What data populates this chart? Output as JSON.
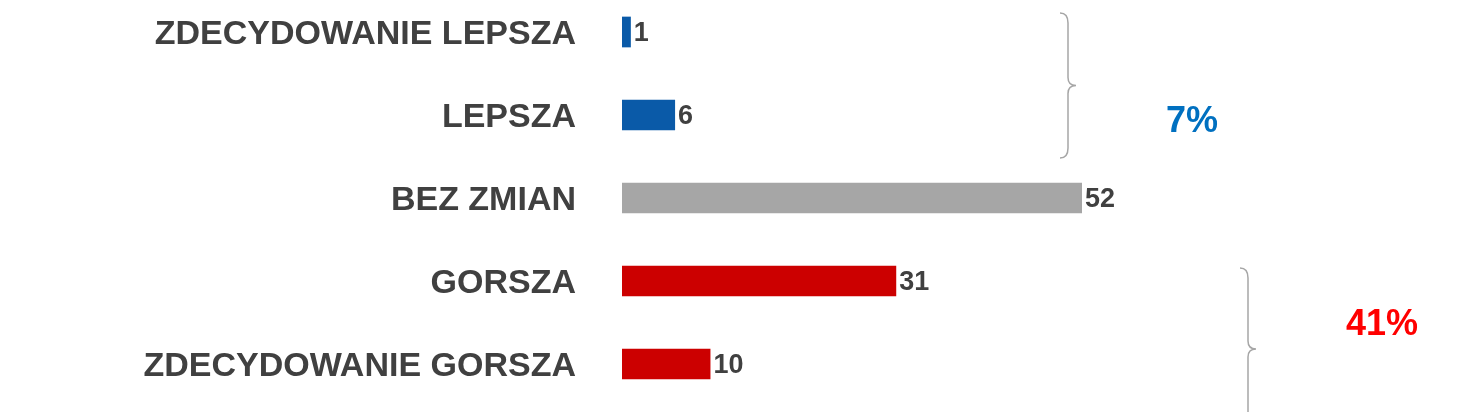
{
  "chart_data": {
    "type": "bar",
    "orientation": "horizontal",
    "categories": [
      "ZDECYDOWANIE LEPSZA",
      "LEPSZA",
      "BEZ ZMIAN",
      "GORSZA",
      "ZDECYDOWANIE GORSZA"
    ],
    "values": [
      1,
      6,
      52,
      31,
      10
    ],
    "colors": [
      "#0a5aa8",
      "#0a5aa8",
      "#a6a6a6",
      "#cc0000",
      "#cc0000"
    ],
    "data_labels": true,
    "annotations": [
      "7%",
      "41%"
    ]
  }
}
